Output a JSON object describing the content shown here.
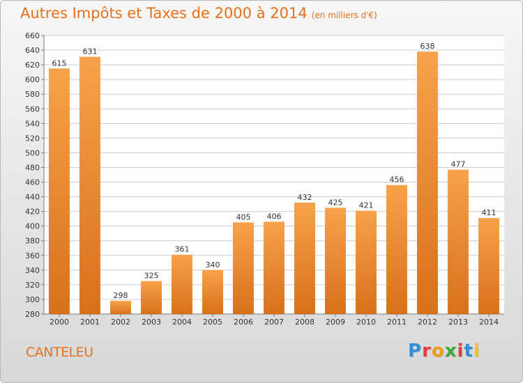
{
  "title": "Autres Impôts et Taxes de 2000 à 2014",
  "unit": "(en milliers d'€)",
  "city": "CANTELEU",
  "logo": {
    "text": "Proxiti",
    "letter_colors": [
      "#2f8fd8",
      "#e83a3a",
      "#f29a1a",
      "#3aa83a",
      "#e83a3a",
      "#2f8fd8",
      "#f2c21a"
    ]
  },
  "colors": {
    "bar_light": "#f7a24a",
    "bar_dark": "#d8711a",
    "text": "#333333",
    "title": "#e8701a",
    "grid": "#cccccc"
  },
  "chart_data": {
    "type": "bar",
    "title": "Autres Impôts et Taxes de 2000 à 2014",
    "subtitle": "(en milliers d'€)",
    "categories": [
      "2000",
      "2001",
      "2002",
      "2003",
      "2004",
      "2005",
      "2006",
      "2007",
      "2008",
      "2009",
      "2010",
      "2011",
      "2012",
      "2013",
      "2014"
    ],
    "values": [
      615,
      631,
      298,
      325,
      361,
      340,
      405,
      406,
      432,
      425,
      421,
      456,
      638,
      477,
      411
    ],
    "ylim": [
      280,
      660
    ],
    "yticks": [
      280,
      300,
      320,
      340,
      360,
      380,
      400,
      420,
      440,
      460,
      480,
      500,
      520,
      540,
      560,
      580,
      600,
      620,
      640,
      660
    ],
    "grid": true,
    "xlabel": "",
    "ylabel": ""
  }
}
